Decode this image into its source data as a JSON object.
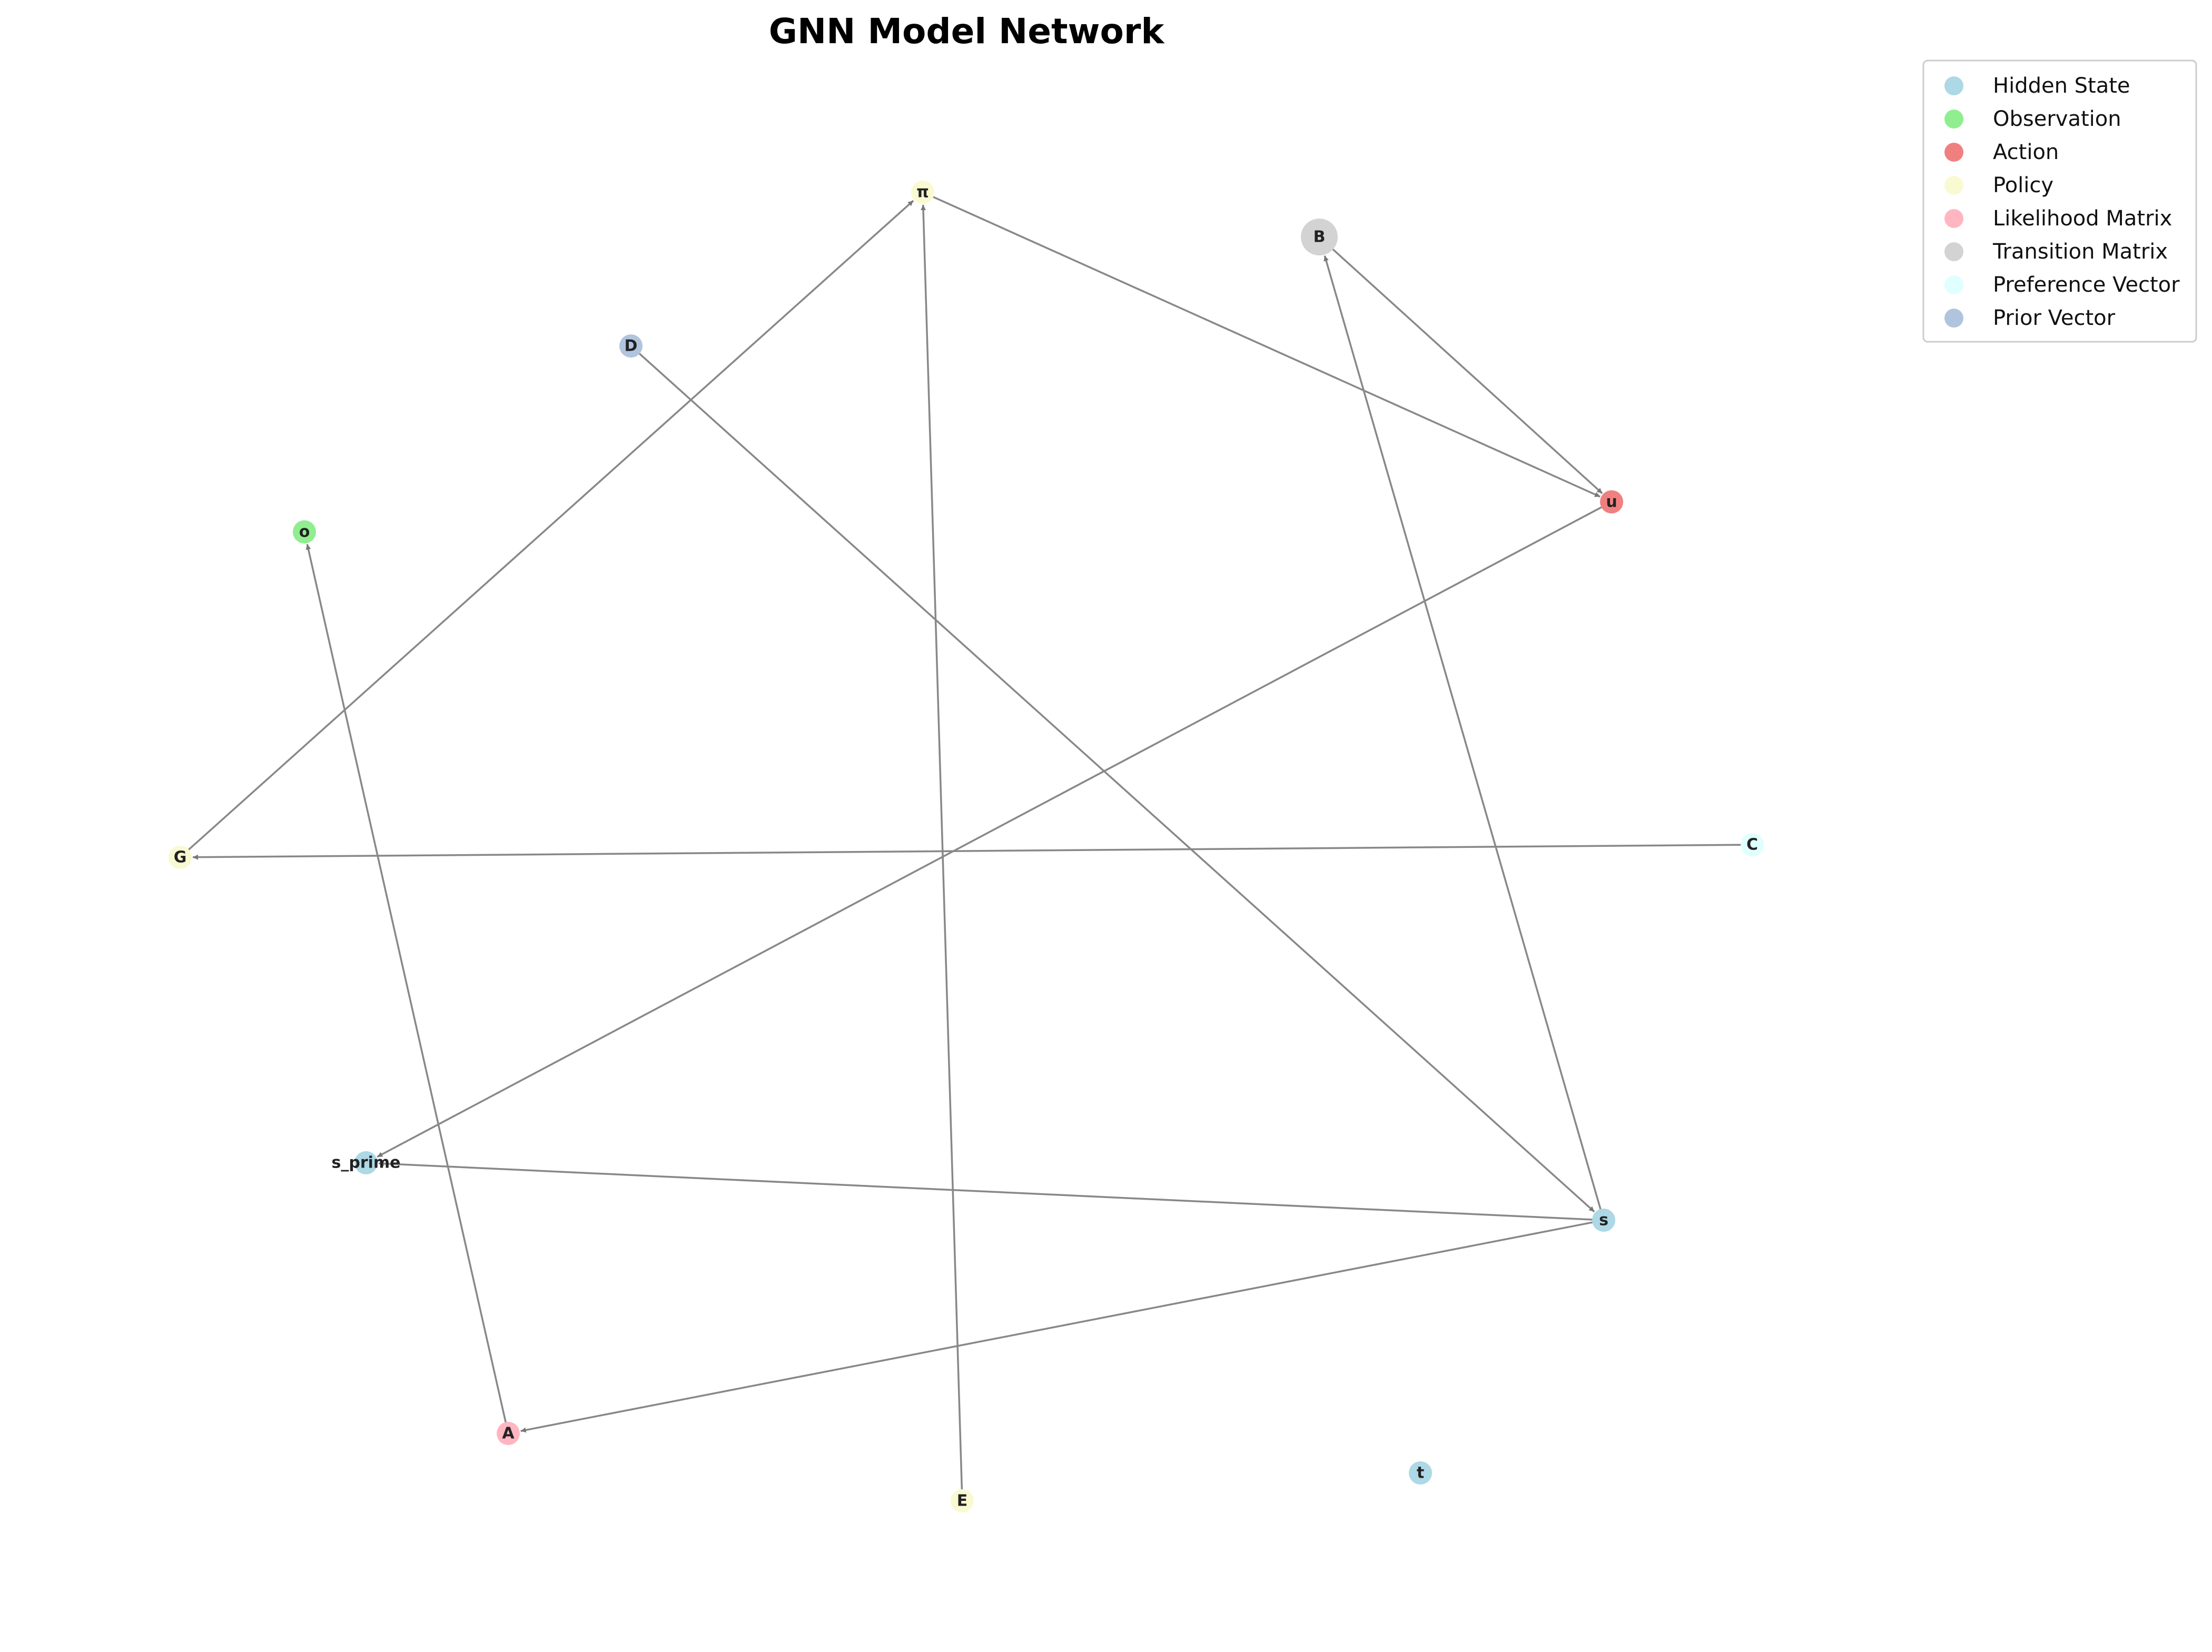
{
  "title": "GNN Model Network",
  "legend": [
    {
      "label": "Hidden State",
      "color": "#add8e6"
    },
    {
      "label": "Observation",
      "color": "#90ee90"
    },
    {
      "label": "Action",
      "color": "#f08080"
    },
    {
      "label": "Policy",
      "color": "#fafad2"
    },
    {
      "label": "Likelihood Matrix",
      "color": "#ffb6c1"
    },
    {
      "label": "Transition Matrix",
      "color": "#d3d3d3"
    },
    {
      "label": "Preference Vector",
      "color": "#e0ffff"
    },
    {
      "label": "Prior Vector",
      "color": "#b0c4de"
    }
  ],
  "nodes": [
    {
      "id": "pi",
      "label": "π",
      "type": "Policy"
    },
    {
      "id": "B",
      "label": "B",
      "type": "Transition Matrix"
    },
    {
      "id": "D",
      "label": "D",
      "type": "Prior Vector"
    },
    {
      "id": "u",
      "label": "u",
      "type": "Action"
    },
    {
      "id": "o",
      "label": "o",
      "type": "Observation"
    },
    {
      "id": "G",
      "label": "G",
      "type": "Policy"
    },
    {
      "id": "C",
      "label": "C",
      "type": "Preference Vector"
    },
    {
      "id": "s_prime",
      "label": "s_prime",
      "type": "Hidden State"
    },
    {
      "id": "s",
      "label": "s",
      "type": "Hidden State"
    },
    {
      "id": "A",
      "label": "A",
      "type": "Likelihood Matrix"
    },
    {
      "id": "E",
      "label": "E",
      "type": "Policy"
    },
    {
      "id": "t",
      "label": "t",
      "type": "Hidden State"
    }
  ],
  "edges": [
    {
      "from": "G",
      "to": "pi"
    },
    {
      "from": "E",
      "to": "pi"
    },
    {
      "from": "pi",
      "to": "u"
    },
    {
      "from": "B",
      "to": "u"
    },
    {
      "from": "s",
      "to": "B"
    },
    {
      "from": "D",
      "to": "s"
    },
    {
      "from": "u",
      "to": "s_prime"
    },
    {
      "from": "C",
      "to": "G"
    },
    {
      "from": "s",
      "to": "s_prime"
    },
    {
      "from": "s",
      "to": "A"
    },
    {
      "from": "A",
      "to": "o"
    }
  ],
  "colors": {
    "edge": "#888888",
    "legend_border": "#cccccc"
  }
}
